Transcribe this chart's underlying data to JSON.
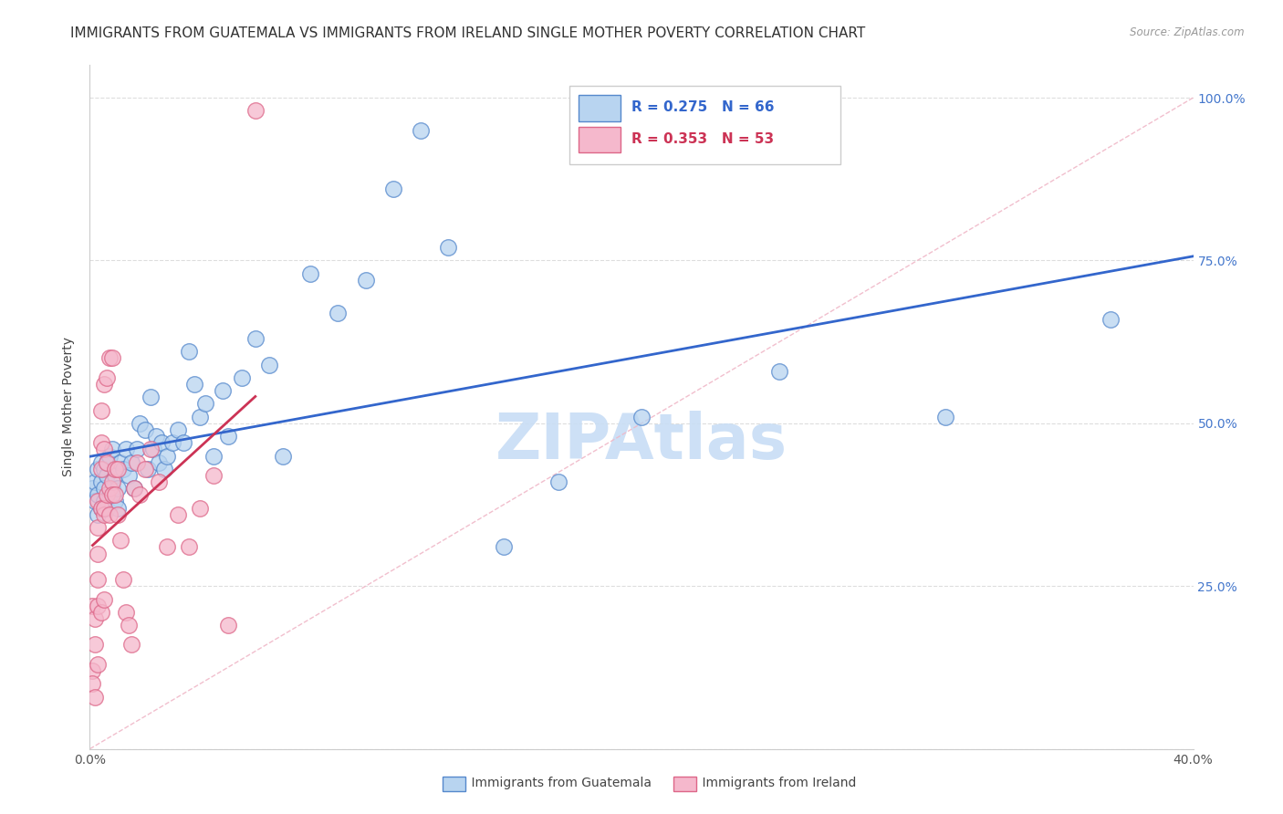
{
  "title": "IMMIGRANTS FROM GUATEMALA VS IMMIGRANTS FROM IRELAND SINGLE MOTHER POVERTY CORRELATION CHART",
  "source": "Source: ZipAtlas.com",
  "xlabel_blue": "Immigrants from Guatemala",
  "xlabel_pink": "Immigrants from Ireland",
  "ylabel": "Single Mother Poverty",
  "xlim": [
    0.0,
    0.4
  ],
  "ylim": [
    0.0,
    1.05
  ],
  "xtick_positions": [
    0.0,
    0.1,
    0.2,
    0.3,
    0.4
  ],
  "xticklabels": [
    "0.0%",
    "",
    "",
    "",
    "40.0%"
  ],
  "ytick_positions": [
    0.0,
    0.25,
    0.5,
    0.75,
    1.0
  ],
  "ytick_labels_right": [
    "",
    "25.0%",
    "50.0%",
    "75.0%",
    "100.0%"
  ],
  "legend_R_blue": "R = 0.275",
  "legend_N_blue": "N = 66",
  "legend_R_pink": "R = 0.353",
  "legend_N_pink": "N = 53",
  "blue_color": "#b8d4f0",
  "blue_edge": "#5588cc",
  "pink_color": "#f5b8cc",
  "pink_edge": "#dd6688",
  "trend_blue": "#3366cc",
  "trend_pink": "#cc3355",
  "ref_line_color": "#f0b8c8",
  "watermark": "ZIPAtlas",
  "watermark_color": "#c8ddf5",
  "title_fontsize": 11,
  "axis_fontsize": 10,
  "tick_fontsize": 10,
  "blue_scatter_x": [
    0.001,
    0.002,
    0.002,
    0.003,
    0.003,
    0.003,
    0.004,
    0.004,
    0.004,
    0.005,
    0.005,
    0.005,
    0.006,
    0.006,
    0.006,
    0.007,
    0.007,
    0.008,
    0.008,
    0.009,
    0.009,
    0.01,
    0.01,
    0.011,
    0.012,
    0.013,
    0.014,
    0.015,
    0.016,
    0.017,
    0.018,
    0.02,
    0.021,
    0.022,
    0.023,
    0.024,
    0.025,
    0.026,
    0.027,
    0.028,
    0.03,
    0.032,
    0.034,
    0.036,
    0.038,
    0.04,
    0.042,
    0.045,
    0.048,
    0.05,
    0.055,
    0.06,
    0.065,
    0.07,
    0.08,
    0.09,
    0.1,
    0.11,
    0.12,
    0.13,
    0.15,
    0.17,
    0.2,
    0.25,
    0.31,
    0.37
  ],
  "blue_scatter_y": [
    0.4,
    0.38,
    0.41,
    0.36,
    0.39,
    0.43,
    0.37,
    0.41,
    0.44,
    0.38,
    0.4,
    0.43,
    0.37,
    0.42,
    0.44,
    0.39,
    0.45,
    0.4,
    0.46,
    0.38,
    0.42,
    0.4,
    0.37,
    0.44,
    0.43,
    0.46,
    0.42,
    0.44,
    0.4,
    0.46,
    0.5,
    0.49,
    0.43,
    0.54,
    0.46,
    0.48,
    0.44,
    0.47,
    0.43,
    0.45,
    0.47,
    0.49,
    0.47,
    0.61,
    0.56,
    0.51,
    0.53,
    0.45,
    0.55,
    0.48,
    0.57,
    0.63,
    0.59,
    0.45,
    0.73,
    0.67,
    0.72,
    0.86,
    0.95,
    0.77,
    0.31,
    0.41,
    0.51,
    0.58,
    0.51,
    0.66
  ],
  "pink_scatter_x": [
    0.001,
    0.001,
    0.001,
    0.002,
    0.002,
    0.002,
    0.003,
    0.003,
    0.003,
    0.003,
    0.003,
    0.003,
    0.004,
    0.004,
    0.004,
    0.004,
    0.004,
    0.005,
    0.005,
    0.005,
    0.005,
    0.005,
    0.006,
    0.006,
    0.006,
    0.007,
    0.007,
    0.007,
    0.008,
    0.008,
    0.008,
    0.009,
    0.009,
    0.01,
    0.01,
    0.011,
    0.012,
    0.013,
    0.014,
    0.015,
    0.016,
    0.017,
    0.018,
    0.02,
    0.022,
    0.025,
    0.028,
    0.032,
    0.036,
    0.04,
    0.045,
    0.05,
    0.06
  ],
  "pink_scatter_y": [
    0.22,
    0.12,
    0.1,
    0.08,
    0.16,
    0.2,
    0.13,
    0.26,
    0.3,
    0.34,
    0.38,
    0.22,
    0.21,
    0.47,
    0.52,
    0.37,
    0.43,
    0.36,
    0.23,
    0.37,
    0.46,
    0.56,
    0.39,
    0.44,
    0.57,
    0.36,
    0.4,
    0.6,
    0.41,
    0.39,
    0.6,
    0.39,
    0.43,
    0.43,
    0.36,
    0.32,
    0.26,
    0.21,
    0.19,
    0.16,
    0.4,
    0.44,
    0.39,
    0.43,
    0.46,
    0.41,
    0.31,
    0.36,
    0.31,
    0.37,
    0.42,
    0.19,
    0.98
  ]
}
